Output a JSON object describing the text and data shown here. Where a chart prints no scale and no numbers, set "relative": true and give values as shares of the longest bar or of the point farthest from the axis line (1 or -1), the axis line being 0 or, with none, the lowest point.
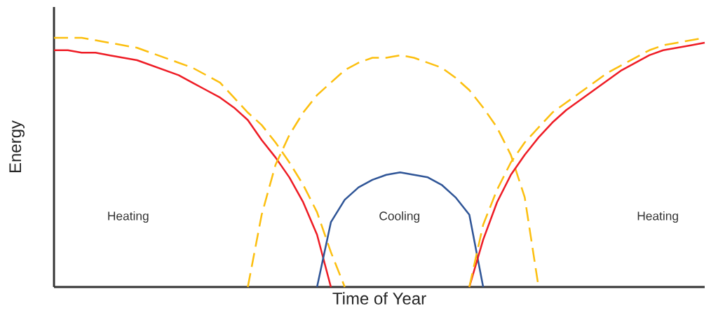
{
  "chart_data": {
    "type": "line",
    "relative": true,
    "xlabel": "Time of Year",
    "ylabel": "Energy",
    "marker": "none",
    "annotations": [
      "Heating",
      "Cooling",
      "Heating"
    ],
    "categories": [
      null,
      null,
      null,
      null,
      null,
      null,
      null,
      null,
      null,
      null,
      null,
      null,
      null,
      null,
      null,
      null,
      null,
      null,
      null,
      null,
      null,
      null,
      null,
      null,
      null,
      null,
      null,
      null,
      null,
      null,
      null,
      null,
      null,
      null,
      null,
      null,
      null,
      null,
      null,
      null,
      null,
      null,
      null,
      null,
      null,
      null,
      null,
      null
    ],
    "series": [
      {
        "color": "#fcbf0f",
        "line_style": "dashed",
        "values": [
          1.0,
          1.0,
          1.0,
          0.99,
          0.98,
          0.97,
          0.96,
          0.94,
          0.92,
          0.9,
          0.88,
          0.85,
          0.82,
          0.76,
          0.7,
          0.65,
          0.58,
          0.5,
          0.41,
          0.3,
          0.14,
          0,
          null,
          null,
          null,
          null,
          null,
          null,
          null,
          null,
          null,
          null,
          null,
          null,
          null,
          null,
          null,
          null,
          null,
          null,
          null,
          null,
          null,
          null,
          null,
          null,
          null,
          null
        ]
      },
      {
        "color": "#ee1c25",
        "line_style": "solid",
        "values": [
          0.95,
          0.95,
          0.94,
          0.94,
          0.93,
          0.92,
          0.91,
          0.89,
          0.87,
          0.85,
          0.82,
          0.79,
          0.76,
          0.72,
          0.67,
          0.59,
          0.52,
          0.44,
          0.34,
          0.21,
          0,
          null,
          null,
          null,
          null,
          null,
          null,
          null,
          null,
          null,
          null,
          null,
          null,
          null,
          null,
          null,
          null,
          null,
          null,
          null,
          null,
          null,
          null,
          null,
          null,
          null,
          null,
          null
        ]
      },
      {
        "color": "#fcbf0f",
        "line_style": "dashed",
        "values": [
          null,
          null,
          null,
          null,
          null,
          null,
          null,
          null,
          null,
          null,
          null,
          null,
          null,
          null,
          0,
          0.29,
          0.49,
          0.61,
          0.7,
          0.77,
          0.82,
          0.87,
          0.9,
          0.92,
          0.92,
          0.93,
          0.92,
          0.9,
          0.88,
          0.84,
          0.79,
          0.72,
          0.64,
          0.53,
          0.36,
          0,
          null,
          null,
          null,
          null,
          null,
          null,
          null,
          null,
          null,
          null,
          null,
          null
        ]
      },
      {
        "color": "#2f5597",
        "line_style": "solid",
        "values": [
          null,
          null,
          null,
          null,
          null,
          null,
          null,
          null,
          null,
          null,
          null,
          null,
          null,
          null,
          null,
          null,
          null,
          null,
          null,
          0,
          0.26,
          0.35,
          0.4,
          0.43,
          0.45,
          0.46,
          0.45,
          0.44,
          0.41,
          0.36,
          0.29,
          0,
          null,
          null,
          null,
          null,
          null,
          null,
          null,
          null,
          null,
          null,
          null,
          null,
          null,
          null,
          null,
          null
        ]
      },
      {
        "color": "#ee1c25",
        "line_style": "solid",
        "values": [
          null,
          null,
          null,
          null,
          null,
          null,
          null,
          null,
          null,
          null,
          null,
          null,
          null,
          null,
          null,
          null,
          null,
          null,
          null,
          null,
          null,
          null,
          null,
          null,
          null,
          null,
          null,
          null,
          null,
          null,
          0,
          0.19,
          0.34,
          0.45,
          0.53,
          0.6,
          0.66,
          0.71,
          0.75,
          0.79,
          0.83,
          0.87,
          0.9,
          0.93,
          0.95,
          0.96,
          0.97,
          0.98
        ]
      },
      {
        "color": "#fcbf0f",
        "line_style": "dashed",
        "values": [
          null,
          null,
          null,
          null,
          null,
          null,
          null,
          null,
          null,
          null,
          null,
          null,
          null,
          null,
          null,
          null,
          null,
          null,
          null,
          null,
          null,
          null,
          null,
          null,
          null,
          null,
          null,
          null,
          null,
          null,
          0,
          0.25,
          0.39,
          0.5,
          0.58,
          0.64,
          0.7,
          0.74,
          0.78,
          0.82,
          0.86,
          0.89,
          0.92,
          0.95,
          0.97,
          0.98,
          0.99,
          1.0
        ]
      }
    ]
  }
}
